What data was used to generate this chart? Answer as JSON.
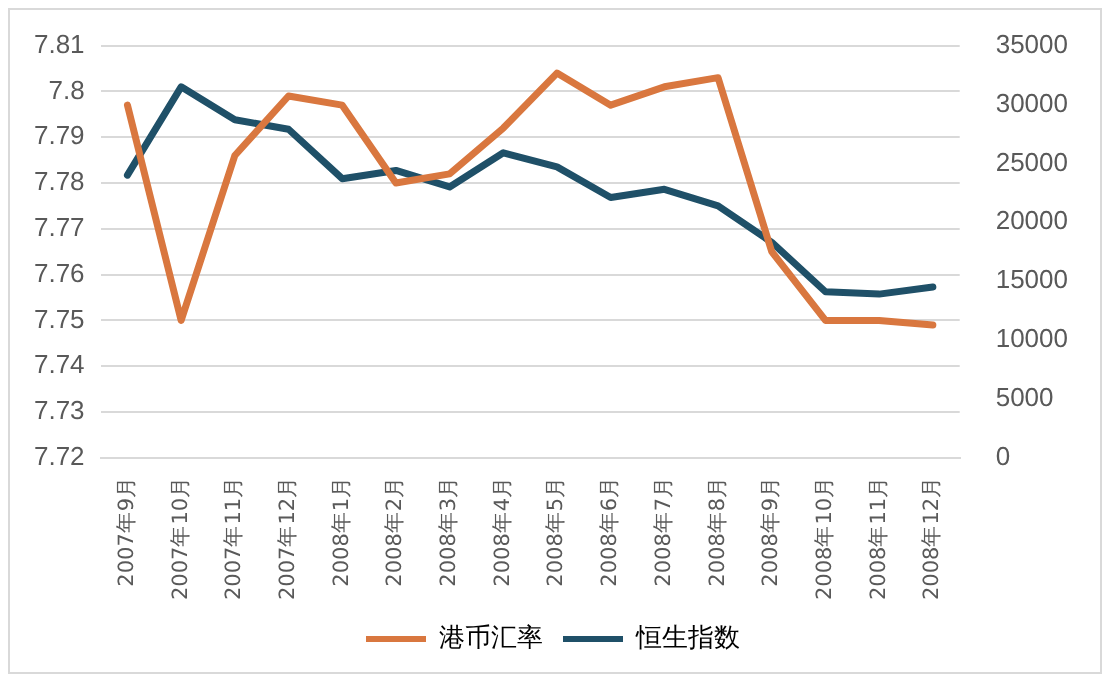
{
  "chart_data": {
    "type": "line",
    "categories": [
      "2007年9月",
      "2007年10月",
      "2007年11月",
      "2007年12月",
      "2008年1月",
      "2008年2月",
      "2008年3月",
      "2008年4月",
      "2008年5月",
      "2008年6月",
      "2008年7月",
      "2008年8月",
      "2008年9月",
      "2008年10月",
      "2008年11月",
      "2008年12月"
    ],
    "series": [
      {
        "name": "港币汇率",
        "color": "#d9773f",
        "values": [
          7.797,
          7.75,
          7.786,
          7.799,
          7.797,
          7.78,
          7.782,
          7.792,
          7.804,
          7.797,
          7.801,
          7.803,
          7.765,
          7.75,
          7.75,
          7.749
        ]
      },
      {
        "name": "恒生指数",
        "color": "#1f5068",
        "axis": "y2",
        "values": [
          24000,
          31500,
          28700,
          27900,
          23700,
          24400,
          23000,
          25900,
          24700,
          22100,
          22800,
          21400,
          18300,
          14100,
          13900,
          14500
        ]
      }
    ],
    "ylim": [
      7.72,
      7.81
    ],
    "yticks": [
      7.72,
      7.73,
      7.74,
      7.75,
      7.76,
      7.77,
      7.78,
      7.79,
      7.8,
      7.81
    ],
    "y2lim": [
      0,
      35000
    ],
    "y2ticks": [
      0,
      5000,
      10000,
      15000,
      20000,
      25000,
      30000,
      35000
    ],
    "grid": "y",
    "legend": "bottom",
    "marker": "none",
    "line_style": "solid"
  }
}
